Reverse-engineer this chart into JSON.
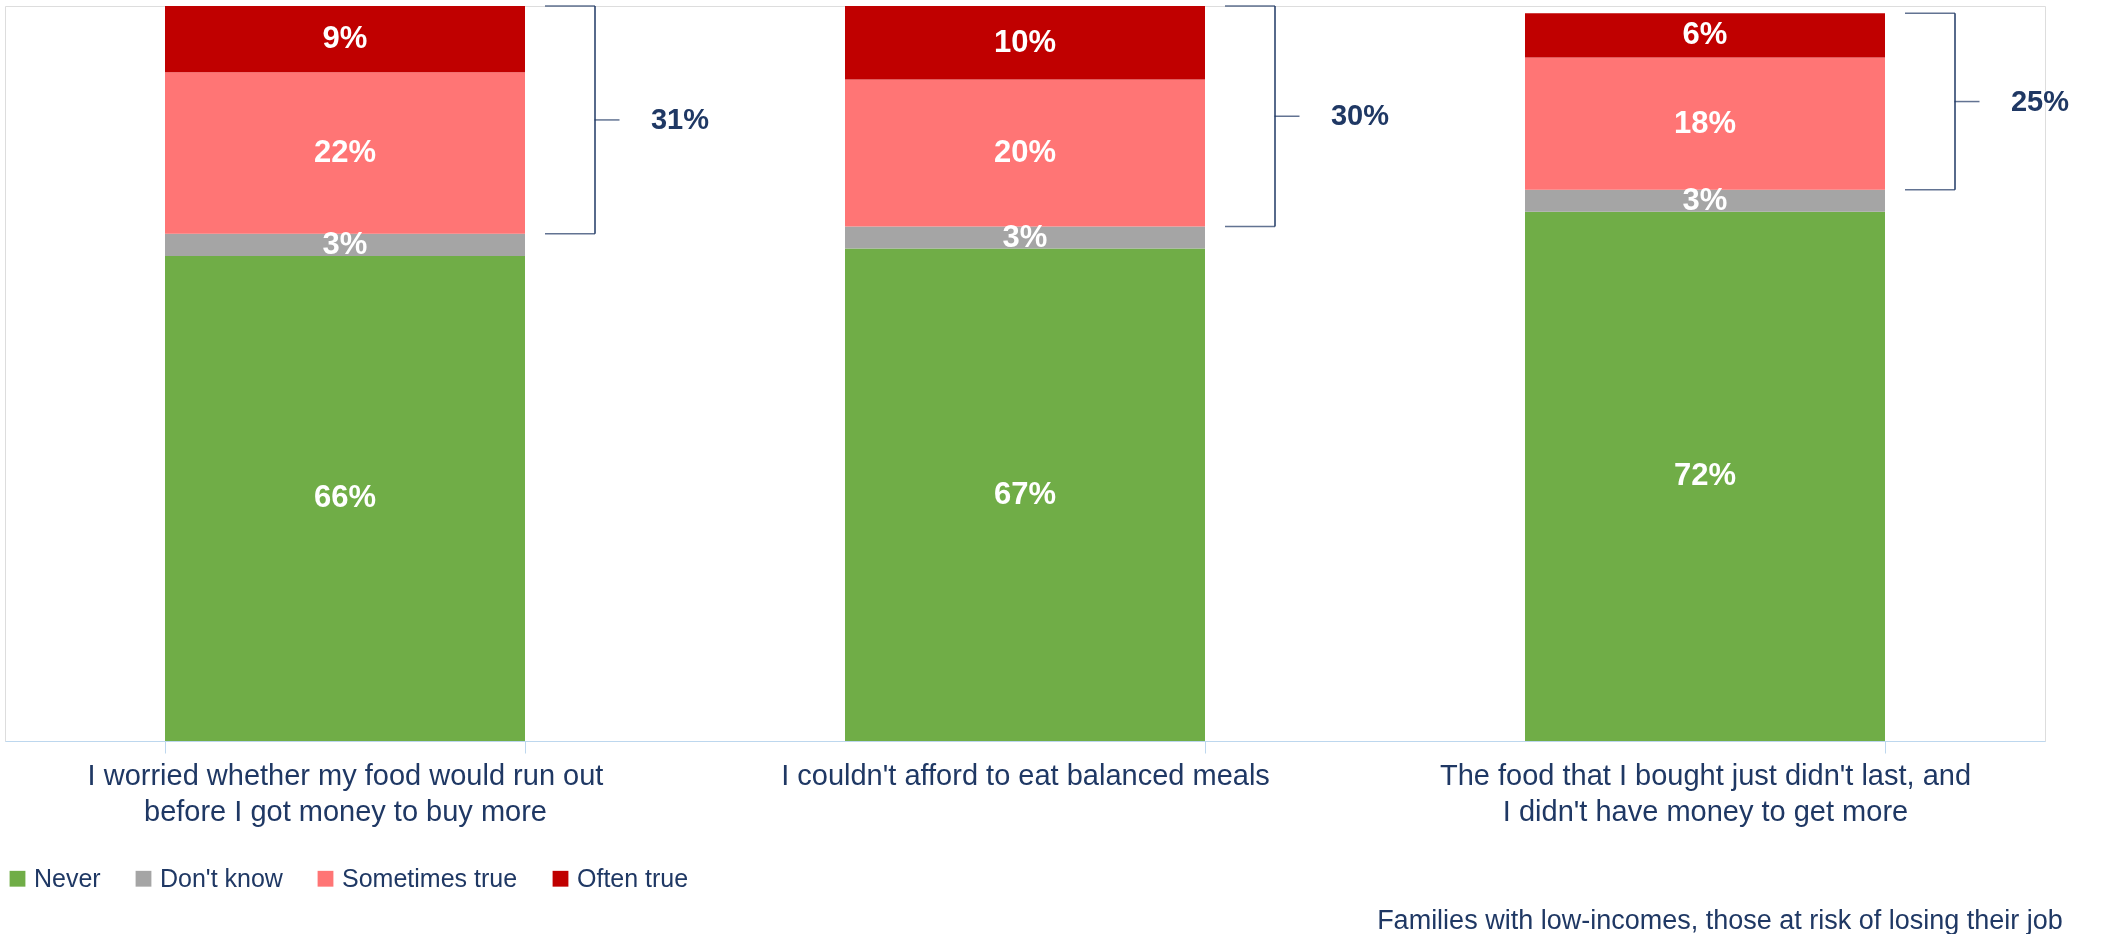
{
  "chart_data": {
    "type": "bar",
    "stacked": true,
    "categories": [
      "I worried whether my food would run out before I got money to buy more",
      "I couldn't afford to eat balanced meals",
      "The food that I bought just didn't last, and I didn't have money to get more"
    ],
    "series": [
      {
        "name": "Never",
        "color": "#70ad47",
        "values": [
          66,
          67,
          72
        ],
        "value_labels": [
          "66%",
          "67%",
          "72%"
        ]
      },
      {
        "name": "Don't know",
        "color": "#a5a5a5",
        "values": [
          3,
          3,
          3
        ],
        "value_labels": [
          "3%",
          "3%",
          "3%"
        ]
      },
      {
        "name": "Sometimes true",
        "color": "#ff7575",
        "values": [
          22,
          20,
          18
        ],
        "value_labels": [
          "22%",
          "20%",
          "18%"
        ]
      },
      {
        "name": "Often true",
        "color": "#c00000",
        "values": [
          9,
          10,
          6
        ],
        "value_labels": [
          "9%",
          "10%",
          "6%"
        ]
      }
    ],
    "tick_labels": "x",
    "legend": "bottom",
    "grid": false,
    "annotations": [
      "31%",
      "30%",
      "25%",
      "Families with low-incomes, those at risk of losing their job"
    ]
  }
}
